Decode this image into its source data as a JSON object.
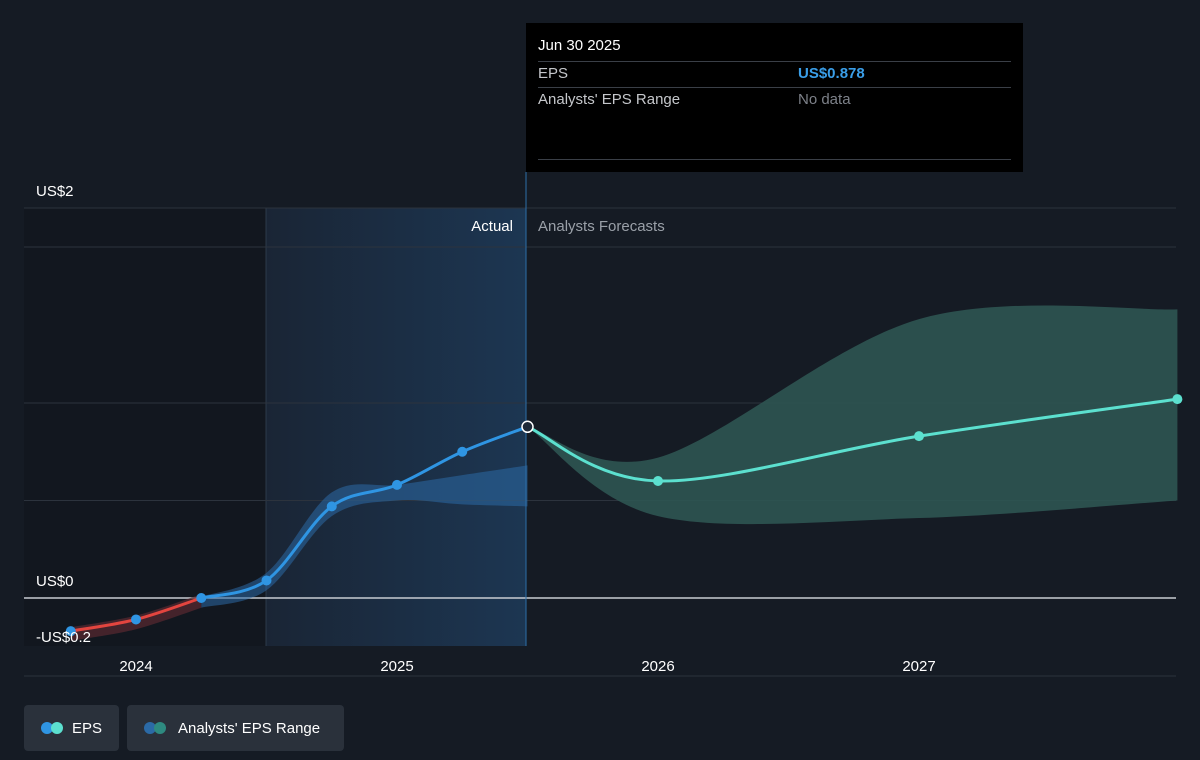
{
  "chart_data": {
    "type": "line",
    "title": "",
    "xlabel": "",
    "ylabel": "",
    "x_ticks": [
      "2024",
      "2025",
      "2026",
      "2027"
    ],
    "y_ticks": [
      {
        "value": 2,
        "label": "US$2"
      },
      {
        "value": 0,
        "label": "US$0"
      },
      {
        "value": -0.2,
        "label": "-US$0.2"
      }
    ],
    "ylim": [
      -0.4,
      2.0
    ],
    "xlim": [
      2023.72,
      2027.99
    ],
    "region_labels": {
      "actual": "Actual",
      "forecast": "Analysts Forecasts"
    },
    "series": [
      {
        "name": "EPS",
        "segment": "actual",
        "points": [
          {
            "x": 2023.75,
            "y": -0.17
          },
          {
            "x": 2024.0,
            "y": -0.11
          },
          {
            "x": 2024.25,
            "y": 0.0
          },
          {
            "x": 2024.5,
            "y": 0.09
          },
          {
            "x": 2024.75,
            "y": 0.47
          },
          {
            "x": 2025.0,
            "y": 0.58
          },
          {
            "x": 2025.25,
            "y": 0.75
          },
          {
            "x": 2025.5,
            "y": 0.878
          }
        ]
      },
      {
        "name": "EPS",
        "segment": "forecast",
        "points": [
          {
            "x": 2025.5,
            "y": 0.878
          },
          {
            "x": 2026.0,
            "y": 0.6
          },
          {
            "x": 2027.0,
            "y": 0.83
          },
          {
            "x": 2027.99,
            "y": 1.02
          }
        ]
      },
      {
        "name": "Analysts' EPS Range",
        "segment": "forecast",
        "upper": [
          {
            "x": 2025.5,
            "y": 0.878
          },
          {
            "x": 2026.0,
            "y": 0.72
          },
          {
            "x": 2027.0,
            "y": 1.43
          },
          {
            "x": 2027.99,
            "y": 1.48
          }
        ],
        "lower": [
          {
            "x": 2025.5,
            "y": 0.878
          },
          {
            "x": 2026.0,
            "y": 0.42
          },
          {
            "x": 2027.0,
            "y": 0.41
          },
          {
            "x": 2027.99,
            "y": 0.5
          }
        ]
      }
    ],
    "legend": [
      "EPS",
      "Analysts' EPS Range"
    ],
    "legend_position": "bottom-left"
  },
  "tooltip": {
    "date": "Jun 30 2025",
    "rows": [
      {
        "name": "EPS",
        "value": "US$0.878"
      },
      {
        "name": "Analysts' EPS Range",
        "value": "No data"
      }
    ]
  },
  "legend": {
    "eps_label": "EPS",
    "range_label": "Analysts' EPS Range"
  },
  "colors": {
    "background": "#151b24",
    "actual_shade": "#1b2f47",
    "eps_actual": "#2f95e3",
    "eps_negative": "#e3453f",
    "eps_forecast": "#5ce0cf",
    "range_forecast": "#2e5552",
    "range_actual": "#2b6aa6"
  }
}
